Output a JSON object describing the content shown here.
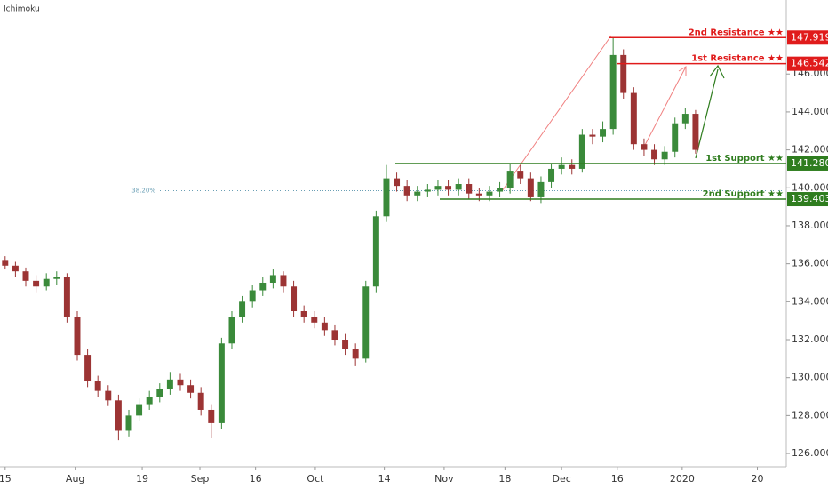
{
  "chart_data": {
    "type": "candlestick",
    "title": "Ichimoku",
    "up_color": "#3a8a3a",
    "down_color": "#9c3434",
    "grid": false,
    "ylim": [
      125.3,
      149.9
    ],
    "yticks": [
      {
        "value": 126,
        "label": "126.000"
      },
      {
        "value": 128,
        "label": "128.000"
      },
      {
        "value": 130,
        "label": "130.000"
      },
      {
        "value": 132,
        "label": "132.000"
      },
      {
        "value": 134,
        "label": "134.000"
      },
      {
        "value": 136,
        "label": "136.000"
      },
      {
        "value": 138,
        "label": "138.000"
      },
      {
        "value": 140,
        "label": "140.000"
      },
      {
        "value": 142,
        "label": "142.000"
      },
      {
        "value": 144,
        "label": "144.000"
      },
      {
        "value": 146,
        "label": "146.000"
      }
    ],
    "xlim": [
      -0.5,
      75.8
    ],
    "xticks": [
      {
        "value": 0,
        "label": "15"
      },
      {
        "value": 6.8,
        "label": "Aug"
      },
      {
        "value": 13.3,
        "label": "19"
      },
      {
        "value": 18.9,
        "label": "Sep"
      },
      {
        "value": 24.3,
        "label": "16"
      },
      {
        "value": 30.1,
        "label": "Oct"
      },
      {
        "value": 36.8,
        "label": "14"
      },
      {
        "value": 42.6,
        "label": "Nov"
      },
      {
        "value": 48.5,
        "label": "18"
      },
      {
        "value": 54,
        "label": "Dec"
      },
      {
        "value": 59.4,
        "label": "16"
      },
      {
        "value": 65.7,
        "label": "2020"
      },
      {
        "value": 73,
        "label": "20"
      }
    ],
    "candles": [
      [
        136.2,
        136.4,
        135.7,
        135.9
      ],
      [
        135.9,
        136.1,
        135.3,
        135.6
      ],
      [
        135.6,
        135.8,
        134.8,
        135.1
      ],
      [
        135.1,
        135.4,
        134.5,
        134.8
      ],
      [
        134.8,
        135.5,
        134.6,
        135.2
      ],
      [
        135.2,
        135.6,
        134.9,
        135.3
      ],
      [
        135.3,
        135.5,
        132.9,
        133.2
      ],
      [
        133.2,
        133.5,
        130.9,
        131.2
      ],
      [
        131.2,
        131.5,
        129.5,
        129.8
      ],
      [
        129.8,
        130.1,
        129.0,
        129.3
      ],
      [
        129.3,
        129.6,
        128.5,
        128.8
      ],
      [
        128.8,
        129.1,
        126.7,
        127.2
      ],
      [
        127.2,
        128.3,
        126.9,
        128.0
      ],
      [
        128.0,
        128.9,
        127.7,
        128.6
      ],
      [
        128.6,
        129.3,
        128.3,
        129.0
      ],
      [
        129.0,
        129.7,
        128.7,
        129.4
      ],
      [
        129.4,
        130.3,
        129.1,
        129.9
      ],
      [
        129.9,
        130.2,
        129.3,
        129.6
      ],
      [
        129.6,
        129.9,
        128.9,
        129.2
      ],
      [
        129.2,
        129.5,
        128.0,
        128.3
      ],
      [
        128.3,
        128.6,
        126.8,
        127.6
      ],
      [
        127.6,
        132.1,
        127.3,
        131.8
      ],
      [
        131.8,
        133.5,
        131.5,
        133.2
      ],
      [
        133.2,
        134.3,
        132.9,
        134.0
      ],
      [
        134.0,
        134.9,
        133.7,
        134.6
      ],
      [
        134.6,
        135.3,
        134.3,
        135.0
      ],
      [
        135.0,
        135.7,
        134.7,
        135.4
      ],
      [
        135.4,
        135.6,
        134.5,
        134.8
      ],
      [
        134.8,
        135.1,
        133.2,
        133.5
      ],
      [
        133.5,
        133.8,
        132.9,
        133.2
      ],
      [
        133.2,
        133.5,
        132.6,
        132.9
      ],
      [
        132.9,
        133.2,
        132.2,
        132.5
      ],
      [
        132.5,
        132.8,
        131.7,
        132.0
      ],
      [
        132.0,
        132.3,
        131.2,
        131.5
      ],
      [
        131.5,
        131.8,
        130.6,
        131.0
      ],
      [
        131.0,
        135.1,
        130.8,
        134.8
      ],
      [
        134.8,
        138.8,
        134.5,
        138.5
      ],
      [
        138.5,
        141.2,
        138.2,
        140.5
      ],
      [
        140.5,
        140.8,
        139.8,
        140.1
      ],
      [
        140.1,
        140.4,
        139.3,
        139.6
      ],
      [
        139.6,
        140.1,
        139.3,
        139.8
      ],
      [
        139.8,
        140.2,
        139.5,
        139.9
      ],
      [
        139.9,
        140.4,
        139.6,
        140.1
      ],
      [
        140.1,
        140.4,
        139.6,
        139.9
      ],
      [
        139.9,
        140.5,
        139.6,
        140.2
      ],
      [
        140.2,
        140.5,
        139.4,
        139.7
      ],
      [
        139.7,
        140.0,
        139.3,
        139.6
      ],
      [
        139.6,
        140.1,
        139.3,
        139.8
      ],
      [
        139.8,
        140.3,
        139.5,
        140.0
      ],
      [
        140.0,
        141.3,
        139.7,
        140.9
      ],
      [
        140.9,
        141.2,
        140.2,
        140.5
      ],
      [
        140.5,
        140.8,
        139.3,
        139.5
      ],
      [
        139.5,
        140.6,
        139.2,
        140.3
      ],
      [
        140.3,
        141.3,
        140.0,
        141.0
      ],
      [
        141.0,
        141.6,
        140.7,
        141.2
      ],
      [
        141.2,
        141.5,
        140.7,
        141.0
      ],
      [
        141.0,
        143.1,
        140.8,
        142.8
      ],
      [
        142.8,
        143.1,
        142.3,
        142.7
      ],
      [
        142.7,
        143.5,
        142.4,
        143.1
      ],
      [
        143.1,
        147.9,
        142.8,
        147.0
      ],
      [
        147.0,
        147.3,
        144.7,
        145.0
      ],
      [
        145.0,
        145.3,
        142.0,
        142.3
      ],
      [
        142.3,
        142.6,
        141.7,
        142.0
      ],
      [
        142.0,
        142.3,
        141.2,
        141.5
      ],
      [
        141.5,
        142.2,
        141.2,
        141.9
      ],
      [
        141.9,
        143.7,
        141.6,
        143.4
      ],
      [
        143.4,
        144.2,
        143.1,
        143.9
      ],
      [
        143.9,
        144.1,
        141.8,
        142.0
      ]
    ],
    "levels": [
      {
        "name": "2nd Resistance ★★",
        "value": 147.919,
        "label": "147.919",
        "color": "#e01b1b"
      },
      {
        "name": "1st Resistance ★★",
        "value": 146.542,
        "label": "146.542",
        "color": "#e01b1b"
      },
      {
        "name": "1st Support ★★",
        "value": 141.28,
        "label": "141.280",
        "color": "#2f7d1f"
      },
      {
        "name": "2nd Support ★★",
        "value": 139.403,
        "label": "139.403",
        "color": "#2f7d1f"
      }
    ],
    "fib": {
      "label": "38.20%",
      "value": 139.85
    }
  }
}
